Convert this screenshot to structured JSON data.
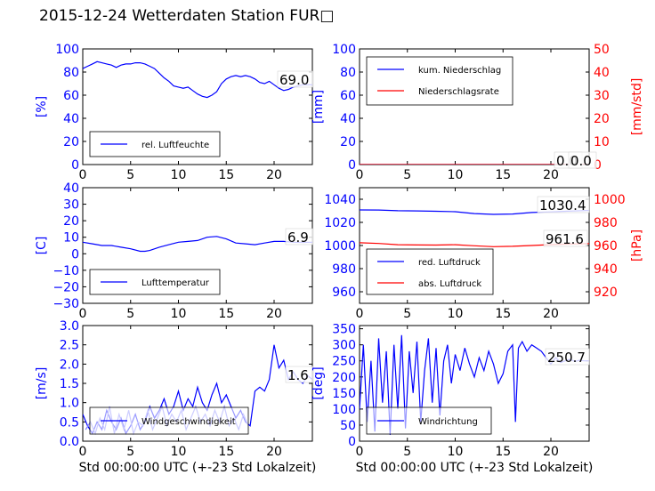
{
  "title": "2015-12-24 Wetterdaten Station FUR□",
  "colors": {
    "blue": "#0000ff",
    "red": "#ff0000",
    "light_blue": "#8080ff"
  },
  "chart_data": [
    {
      "id": "humidity",
      "type": "line",
      "ylabel": "[%]",
      "xlim": [
        0,
        24
      ],
      "ylim": [
        0,
        100
      ],
      "xticks": [
        "0",
        "5",
        "10",
        "15",
        "20"
      ],
      "yticks": [
        "0",
        "20",
        "40",
        "60",
        "80",
        "100"
      ],
      "legend": [
        "rel. Luftfeuchte"
      ],
      "legend_position": "lower-left",
      "current_value_label": "69.0",
      "series": [
        {
          "name": "rel. Luftfeuchte",
          "color": "#0000ff",
          "x": [
            0,
            0.5,
            1,
            1.5,
            2,
            2.5,
            3,
            3.5,
            4,
            4.5,
            5,
            5.5,
            6,
            6.5,
            7,
            7.5,
            8,
            8.5,
            9,
            9.5,
            10,
            10.5,
            11,
            11.5,
            12,
            12.5,
            13,
            13.5,
            14,
            14.5,
            15,
            15.5,
            16,
            16.5,
            17,
            17.5,
            18,
            18.5,
            19,
            19.5,
            20,
            20.5,
            21,
            21.5,
            22,
            22.5,
            23,
            23.5,
            24
          ],
          "y": [
            83,
            85,
            87,
            89,
            88,
            87,
            86,
            84,
            86,
            87,
            87,
            88,
            88,
            87,
            85,
            83,
            79,
            75,
            72,
            68,
            67,
            66,
            67,
            64,
            61,
            59,
            58,
            60,
            63,
            70,
            74,
            76,
            77,
            76,
            77,
            76,
            74,
            71,
            70,
            72,
            69,
            66,
            64,
            65,
            67,
            68,
            69,
            69,
            69
          ]
        }
      ]
    },
    {
      "id": "precipitation",
      "type": "line",
      "ylabel": "[mm]",
      "ylabel_right": "[mm/std]",
      "xlim": [
        0,
        24
      ],
      "ylim": [
        0,
        100
      ],
      "ylim_right": [
        0,
        50
      ],
      "xticks": [
        "0",
        "5",
        "10",
        "15",
        "20"
      ],
      "yticks": [
        "0",
        "20",
        "40",
        "60",
        "80",
        "100"
      ],
      "yticks_right": [
        "0",
        "10",
        "20",
        "30",
        "40",
        "50"
      ],
      "legend": [
        "kum. Niederschlag",
        "Niederschlagsrate"
      ],
      "legend_position": "upper-left",
      "current_value_label": "0.0",
      "current_value_label_right": "0.0",
      "series": [
        {
          "name": "kum. Niederschlag",
          "color": "#0000ff",
          "x": [
            0,
            24
          ],
          "y": [
            0,
            0
          ]
        },
        {
          "name": "Niederschlagsrate",
          "color": "#ff0000",
          "axis": "right",
          "x": [
            0,
            24
          ],
          "y": [
            0,
            0
          ]
        }
      ]
    },
    {
      "id": "temperature",
      "type": "line",
      "ylabel": "[C]",
      "xlim": [
        0,
        24
      ],
      "ylim": [
        -30,
        40
      ],
      "xticks": [
        "0",
        "5",
        "10",
        "15",
        "20"
      ],
      "yticks": [
        "−30",
        "−20",
        "−10",
        "0",
        "10",
        "20",
        "30",
        "40"
      ],
      "legend": [
        "Lufttemperatur"
      ],
      "legend_position": "lower-left",
      "current_value_label": "6.9",
      "series": [
        {
          "name": "Lufttemperatur",
          "color": "#0000ff",
          "x": [
            0,
            1,
            2,
            3,
            4,
            5,
            6,
            6.5,
            7,
            8,
            9,
            10,
            11,
            12,
            13,
            14,
            15,
            16,
            17,
            18,
            19,
            20,
            21,
            22,
            23,
            24
          ],
          "y": [
            7,
            6,
            5,
            5,
            4,
            3,
            1.5,
            1.5,
            2,
            4,
            5.5,
            7,
            7.5,
            8,
            10,
            10.5,
            9,
            6.5,
            6,
            5.5,
            6.5,
            7.5,
            7.5,
            7,
            6.9,
            7
          ]
        }
      ]
    },
    {
      "id": "pressure",
      "type": "line",
      "ylabel": "",
      "ylabel_right": "[hPa]",
      "xlim": [
        0,
        24
      ],
      "ylim": [
        950,
        1050
      ],
      "ylim_right": [
        910,
        1010
      ],
      "xticks": [
        "0",
        "5",
        "10",
        "15",
        "20"
      ],
      "yticks": [
        "960",
        "980",
        "1000",
        "1020",
        "1040"
      ],
      "yticks_right": [
        "920",
        "940",
        "960",
        "980",
        "1000"
      ],
      "legend": [
        "red. Luftdruck",
        "abs. Luftdruck"
      ],
      "legend_position": "lower-left",
      "current_value_label": "1030.4",
      "current_value_label_right": "961.6",
      "series": [
        {
          "name": "red. Luftdruck",
          "color": "#0000ff",
          "x": [
            0,
            2,
            4,
            6,
            8,
            10,
            12,
            14,
            16,
            18,
            20,
            22,
            24
          ],
          "y": [
            1030.8,
            1030.7,
            1030.1,
            1029.9,
            1029.6,
            1029.2,
            1027.6,
            1026.9,
            1027.2,
            1028.5,
            1029.1,
            1029.8,
            1030.4
          ]
        },
        {
          "name": "abs. Luftdruck",
          "color": "#ff0000",
          "axis": "right",
          "x": [
            0,
            2,
            4,
            6,
            8,
            10,
            12,
            14,
            16,
            18,
            20,
            22,
            24
          ],
          "y": [
            962.4,
            961.8,
            960.7,
            960.5,
            960.4,
            960.7,
            959.8,
            959.0,
            959.3,
            960.0,
            960.8,
            961.3,
            961.6
          ]
        }
      ]
    },
    {
      "id": "windspeed",
      "type": "line",
      "ylabel": "[m/s]",
      "xlabel": "Std 00:00:00 UTC (+-23 Std Lokalzeit)",
      "xlim": [
        0,
        24
      ],
      "ylim": [
        0,
        3.0
      ],
      "xticks": [
        "0",
        "5",
        "10",
        "15",
        "20"
      ],
      "yticks": [
        "0.0",
        "0.5",
        "1.0",
        "1.5",
        "2.0",
        "2.5",
        "3.0"
      ],
      "legend": [
        "Windgeschwindigkeit"
      ],
      "legend_position": "lower-left",
      "current_value_label": "1.6",
      "series": [
        {
          "name": "Windgeschwindigkeit",
          "color": "#0000ff",
          "x": [
            0,
            0.5,
            1,
            1.5,
            2,
            2.5,
            3,
            3.5,
            4,
            4.5,
            5,
            5.5,
            6,
            6.5,
            7,
            7.5,
            8,
            8.5,
            9,
            9.5,
            10,
            10.5,
            11,
            11.5,
            12,
            12.5,
            13,
            13.5,
            14,
            14.5,
            15,
            15.5,
            16,
            16.5,
            17,
            17.5,
            18,
            18.5,
            19,
            19.5,
            20,
            20.5,
            21,
            21.5,
            22,
            22.5,
            23,
            23.5,
            24
          ],
          "y": [
            0.7,
            0.4,
            0.2,
            0.5,
            0.3,
            0.8,
            0.5,
            0.3,
            0.6,
            0.2,
            0.4,
            0.7,
            0.3,
            0.5,
            0.9,
            0.6,
            0.8,
            1.1,
            0.7,
            0.9,
            1.3,
            0.8,
            1.1,
            0.9,
            1.4,
            1.0,
            0.8,
            1.2,
            1.5,
            1.0,
            1.2,
            0.9,
            0.6,
            0.8,
            0.5,
            0.4,
            1.3,
            1.4,
            1.3,
            1.6,
            2.5,
            1.9,
            2.1,
            1.6,
            1.8,
            1.6,
            1.5,
            1.7,
            1.6
          ]
        },
        {
          "name": "",
          "color": "#8080ff",
          "x": [
            0.3,
            0.8,
            1.3,
            1.8,
            2.3,
            2.8,
            3.3,
            3.8,
            4.3,
            4.8,
            5.3,
            5.8,
            6.3,
            6.8,
            7.3,
            7.8,
            8.3,
            8.8,
            9.3,
            9.8,
            10.3,
            10.8,
            11.3,
            11.8,
            12.3,
            12.8,
            13.3,
            13.8,
            14.3,
            14.8,
            15.3,
            15.8,
            16.3,
            16.8,
            17.3
          ],
          "y": [
            0.3,
            0.5,
            0.2,
            0.6,
            0.3,
            0.9,
            0.2,
            0.7,
            0.3,
            0.8,
            0.2,
            0.5,
            0.4,
            0.8,
            0.3,
            0.6,
            0.9,
            0.4,
            0.7,
            0.5,
            0.8,
            0.3,
            0.6,
            0.9,
            0.5,
            0.7,
            0.4,
            0.8,
            0.5,
            0.9,
            0.4,
            0.6,
            0.3,
            0.7,
            0.4
          ]
        }
      ]
    },
    {
      "id": "winddirection",
      "type": "line",
      "ylabel": "[deg]",
      "xlabel": "Std 00:00:00 UTC (+-23 Std Lokalzeit)",
      "xlim": [
        0,
        24
      ],
      "ylim": [
        0,
        360
      ],
      "xticks": [
        "0",
        "5",
        "10",
        "15",
        "20"
      ],
      "yticks": [
        "0",
        "50",
        "100",
        "150",
        "200",
        "250",
        "300",
        "350"
      ],
      "legend": [
        "Windrichtung"
      ],
      "legend_position": "lower-left",
      "current_value_label": "250.7",
      "series": [
        {
          "name": "Windrichtung",
          "color": "#0000ff",
          "x": [
            0,
            0.4,
            0.8,
            1.2,
            1.6,
            2.0,
            2.4,
            2.8,
            3.2,
            3.6,
            4.0,
            4.4,
            4.8,
            5.2,
            5.6,
            6.0,
            6.4,
            6.8,
            7.2,
            7.6,
            8.0,
            8.4,
            8.8,
            9.2,
            9.6,
            10.0,
            10.5,
            11.0,
            11.5,
            12.0,
            12.5,
            13.0,
            13.5,
            14.0,
            14.5,
            15.0,
            15.5,
            16.0,
            16.3,
            16.6,
            17.0,
            17.5,
            18.0,
            18.5,
            19.0,
            19.5,
            20.0,
            20.5,
            21.0,
            21.5,
            22.0,
            22.5,
            23.0,
            23.5,
            24.0
          ],
          "y": [
            100,
            300,
            60,
            250,
            30,
            320,
            120,
            280,
            20,
            300,
            100,
            330,
            40,
            280,
            150,
            310,
            60,
            220,
            320,
            120,
            290,
            80,
            250,
            300,
            180,
            270,
            220,
            290,
            240,
            200,
            260,
            220,
            280,
            240,
            180,
            210,
            280,
            300,
            60,
            290,
            310,
            280,
            300,
            290,
            280,
            260,
            240,
            260,
            245,
            250,
            255,
            248,
            252,
            250,
            250
          ]
        }
      ]
    }
  ]
}
